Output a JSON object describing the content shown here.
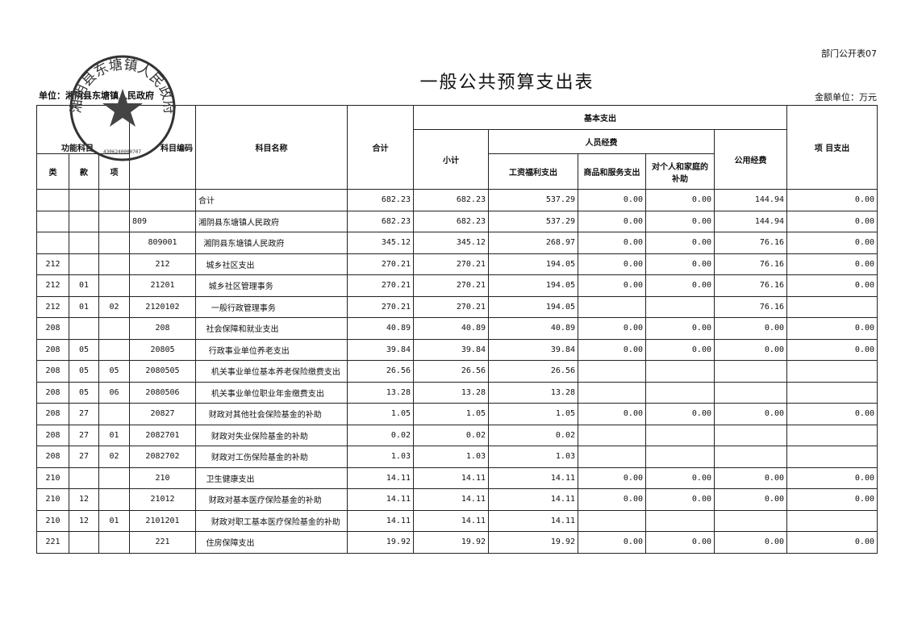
{
  "code": "部门公开表07",
  "title": "一般公共预算支出表",
  "unit_label": "单位：",
  "unit": "湘阴县东塘镇人民政府",
  "money_unit": "金额单位：万元",
  "stamp": {
    "text": "湘阴县东塘镇人民政府",
    "number": "4306240000707"
  },
  "headers": {
    "func": "功能科目",
    "lei": "类",
    "kuan": "款",
    "xiang": "项",
    "code": "科目编码",
    "name": "科目名称",
    "total": "合计",
    "basic": "基本支出",
    "subtotal": "小计",
    "personnel": "人员经费",
    "wage": "工资福利支出",
    "goods": "商品和服务支出",
    "family": "对个人和家庭的补助",
    "public": "公用经费",
    "project": "项 目支出"
  },
  "rows": [
    [
      "",
      "",
      "",
      "",
      "合计",
      "682.23",
      "682.23",
      "537.29",
      "0.00",
      "0.00",
      "144.94",
      "0.00"
    ],
    [
      "",
      "",
      "",
      "809",
      "湘阴县东塘镇人民政府",
      "682.23",
      "682.23",
      "537.29",
      "0.00",
      "0.00",
      "144.94",
      "0.00"
    ],
    [
      "",
      "",
      "",
      "809001",
      "  湘阴县东塘镇人民政府",
      "345.12",
      "345.12",
      "268.97",
      "0.00",
      "0.00",
      "76.16",
      "0.00"
    ],
    [
      "212",
      "",
      "",
      "212",
      "   城乡社区支出",
      "270.21",
      "270.21",
      "194.05",
      "0.00",
      "0.00",
      "76.16",
      "0.00"
    ],
    [
      "212",
      "01",
      "",
      "21201",
      "    城乡社区管理事务",
      "270.21",
      "270.21",
      "194.05",
      "0.00",
      "0.00",
      "76.16",
      "0.00"
    ],
    [
      "212",
      "01",
      "02",
      "2120102",
      "     一般行政管理事务",
      "270.21",
      "270.21",
      "194.05",
      "",
      "",
      "76.16",
      ""
    ],
    [
      "208",
      "",
      "",
      "208",
      "   社会保障和就业支出",
      "40.89",
      "40.89",
      "40.89",
      "0.00",
      "0.00",
      "0.00",
      "0.00"
    ],
    [
      "208",
      "05",
      "",
      "20805",
      "    行政事业单位养老支出",
      "39.84",
      "39.84",
      "39.84",
      "0.00",
      "0.00",
      "0.00",
      "0.00"
    ],
    [
      "208",
      "05",
      "05",
      "2080505",
      "     机关事业单位基本养老保险缴费支出",
      "26.56",
      "26.56",
      "26.56",
      "",
      "",
      "",
      ""
    ],
    [
      "208",
      "05",
      "06",
      "2080506",
      "     机关事业单位职业年金缴费支出",
      "13.28",
      "13.28",
      "13.28",
      "",
      "",
      "",
      ""
    ],
    [
      "208",
      "27",
      "",
      "20827",
      "    财政对其他社会保险基金的补助",
      "1.05",
      "1.05",
      "1.05",
      "0.00",
      "0.00",
      "0.00",
      "0.00"
    ],
    [
      "208",
      "27",
      "01",
      "2082701",
      "     财政对失业保险基金的补助",
      "0.02",
      "0.02",
      "0.02",
      "",
      "",
      "",
      ""
    ],
    [
      "208",
      "27",
      "02",
      "2082702",
      "     财政对工伤保险基金的补助",
      "1.03",
      "1.03",
      "1.03",
      "",
      "",
      "",
      ""
    ],
    [
      "210",
      "",
      "",
      "210",
      "   卫生健康支出",
      "14.11",
      "14.11",
      "14.11",
      "0.00",
      "0.00",
      "0.00",
      "0.00"
    ],
    [
      "210",
      "12",
      "",
      "21012",
      "    财政对基本医疗保险基金的补助",
      "14.11",
      "14.11",
      "14.11",
      "0.00",
      "0.00",
      "0.00",
      "0.00"
    ],
    [
      "210",
      "12",
      "01",
      "2101201",
      "     财政对职工基本医疗保险基金的补助",
      "14.11",
      "14.11",
      "14.11",
      "",
      "",
      "",
      ""
    ],
    [
      "221",
      "",
      "",
      "221",
      "   住房保障支出",
      "19.92",
      "19.92",
      "19.92",
      "0.00",
      "0.00",
      "0.00",
      "0.00"
    ]
  ]
}
